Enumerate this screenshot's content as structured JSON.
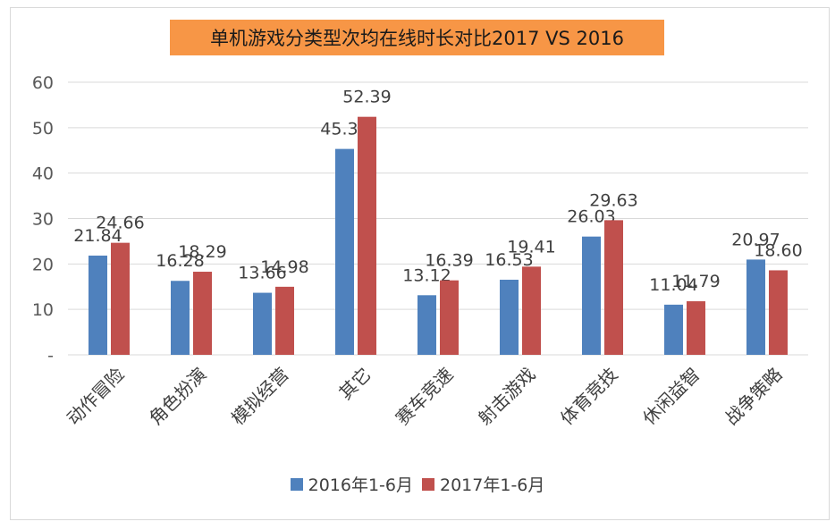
{
  "chart_data": {
    "type": "bar",
    "title": "单机游戏分类型次均在线时长对比2017 VS 2016",
    "categories": [
      "动作冒险",
      "角色扮演",
      "模拟经营",
      "其它",
      "赛车竞速",
      "射击游戏",
      "体育竞技",
      "休闲益智",
      "战争策略"
    ],
    "series": [
      {
        "name": "2016年1-6月",
        "color": "#4f81bd",
        "values": [
          21.84,
          16.28,
          13.66,
          45.32,
          13.12,
          16.53,
          26.03,
          11.04,
          20.97
        ],
        "labels": [
          "21.84",
          "16.28",
          "13.66",
          "45.32",
          "13.12",
          "16.53",
          "26.03",
          "11.04",
          "20.97"
        ]
      },
      {
        "name": "2017年1-6月",
        "color": "#c0504d",
        "values": [
          24.66,
          18.29,
          14.98,
          52.39,
          16.39,
          19.41,
          29.63,
          11.79,
          18.6
        ],
        "labels": [
          "24.66",
          "18.29",
          "14.98",
          "52.39",
          "16.39",
          "19.41",
          "29.63",
          "11.79",
          "18.60"
        ]
      }
    ],
    "yticks": [
      {
        "value": 0,
        "label": "-"
      },
      {
        "value": 10,
        "label": "10"
      },
      {
        "value": 20,
        "label": "20"
      },
      {
        "value": 30,
        "label": "30"
      },
      {
        "value": 40,
        "label": "40"
      },
      {
        "value": 50,
        "label": "50"
      },
      {
        "value": 60,
        "label": "60"
      }
    ],
    "ylim": [
      0,
      60
    ],
    "grid": true,
    "legend": "bottom"
  }
}
